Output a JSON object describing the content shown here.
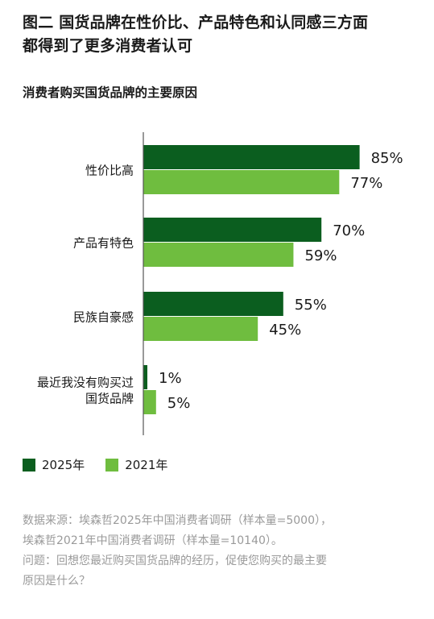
{
  "title_line1": "图二  国货品牌在性价比、产品特色和认同感三方面",
  "title_line2": "都得到了更多消费者认可",
  "subtitle": "消费者购买国货品牌的主要原因",
  "colors": {
    "s2025": "#0b5e1f",
    "s2021": "#6fbd3f",
    "axis": "#555555"
  },
  "legend": [
    {
      "label": "2025年",
      "color": "#0b5e1f"
    },
    {
      "label": "2021年",
      "color": "#6fbd3f"
    }
  ],
  "notes": {
    "line1": "数据来源：埃森哲2025年中国消费者调研（样本量=5000），",
    "line2": "埃森哲2021年中国消费者调研（样本量=10140）。",
    "line3": "问题：回想您最近购买国货品牌的经历，促使您购买的最主要",
    "line4": "原因是什么？"
  },
  "chart_data": {
    "type": "bar",
    "orientation": "horizontal",
    "categories": [
      [
        "性价比高"
      ],
      [
        "产品有特色"
      ],
      [
        "民族自豪感"
      ],
      [
        "最近我没有购买过",
        "国货品牌"
      ]
    ],
    "series": [
      {
        "name": "2025年",
        "values": [
          85,
          70,
          55,
          1
        ],
        "labels": [
          "85%",
          "70%",
          "55%",
          "1%"
        ]
      },
      {
        "name": "2021年",
        "values": [
          77,
          59,
          45,
          5
        ],
        "labels": [
          "77%",
          "59%",
          "45%",
          "5%"
        ]
      }
    ],
    "xlim": [
      0,
      100
    ],
    "grid": false
  }
}
